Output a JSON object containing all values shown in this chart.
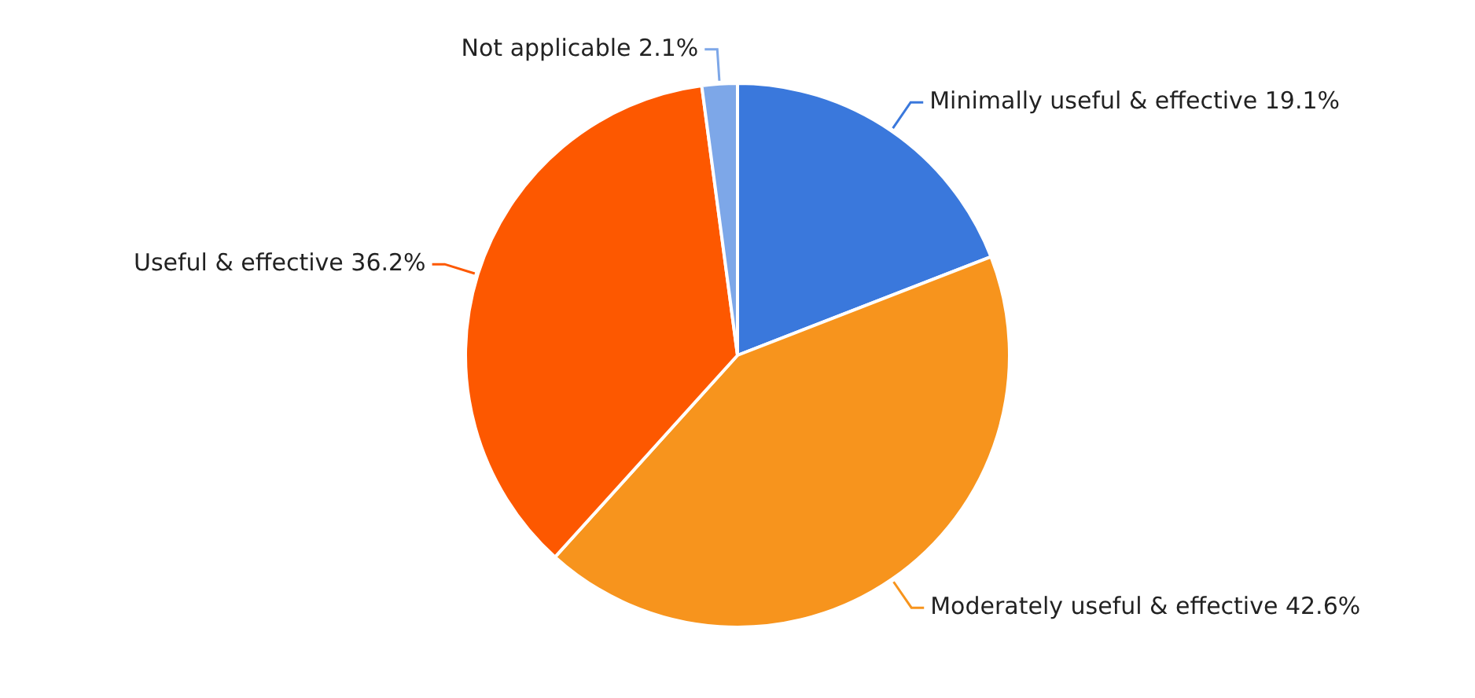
{
  "chart_data": {
    "type": "pie",
    "categories": [
      "Minimally useful & effective",
      "Moderately useful & effective",
      "Useful & effective",
      "Not applicable"
    ],
    "values": [
      19.1,
      42.6,
      36.2,
      2.1
    ],
    "value_labels": [
      "19.1%",
      "42.6%",
      "36.2%",
      "2.1%"
    ],
    "colors": [
      "#3a78dc",
      "#f7941d",
      "#fd5800",
      "#7da7e8"
    ],
    "legend": false
  }
}
